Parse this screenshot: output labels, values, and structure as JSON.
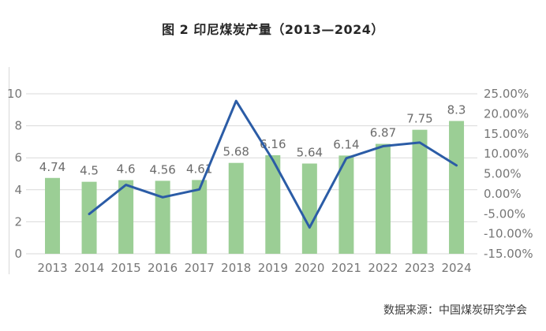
{
  "title": "图 2 印尼煤炭产量（2013—2024）",
  "source": "数据来源：中国煤炭研究学会",
  "colors": {
    "bar": "#9bce95",
    "line": "#2b5ca6",
    "grid": "#d9d9d9",
    "axis_text": "#767676",
    "label_text": "#6b6b6b",
    "title_text": "#262626",
    "source_text": "#3d3d3d"
  },
  "chart_data": {
    "type": "combo",
    "title": "图 2 印尼煤炭产量（2013—2024）",
    "categories": [
      "2013",
      "2014",
      "2015",
      "2016",
      "2017",
      "2018",
      "2019",
      "2020",
      "2021",
      "2022",
      "2023",
      "2024"
    ],
    "series": [
      {
        "id": "bar-series",
        "type": "bar",
        "axis": "left",
        "values": [
          4.74,
          4.5,
          4.6,
          4.56,
          4.61,
          5.68,
          6.16,
          5.64,
          6.14,
          6.87,
          7.75,
          8.3
        ],
        "data_labels": [
          "4.74",
          "4.5",
          "4.6",
          "4.56",
          "4.61",
          "5.68",
          "6.16",
          "5.64",
          "6.14",
          "6.87",
          "7.75",
          "8.3"
        ]
      },
      {
        "id": "line-series",
        "type": "line",
        "axis": "right",
        "values": [
          null,
          -5.06,
          2.22,
          -0.87,
          1.1,
          23.21,
          8.45,
          -8.44,
          8.87,
          11.89,
          12.81,
          7.1
        ]
      }
    ],
    "left_axis": {
      "min": 0,
      "max": 10,
      "step": 2,
      "ticks_top_to_bottom": [
        "10",
        "8",
        "6",
        "4",
        "2",
        "0"
      ]
    },
    "right_axis": {
      "min": -15,
      "max": 25,
      "step": 5,
      "ticks_top_to_bottom": [
        "25.00%",
        "20.00%",
        "15.00%",
        "10.00%",
        "5.00%",
        "0.00%",
        "-5.00%",
        "-10.00%",
        "-15.00%"
      ]
    },
    "grid": true,
    "legend": "none",
    "xlabel": "",
    "ylabel": ""
  }
}
